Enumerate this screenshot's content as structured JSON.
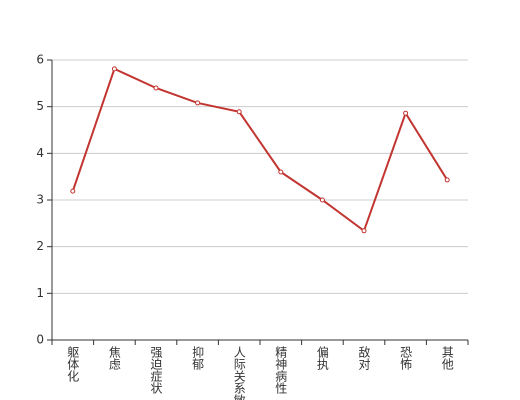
{
  "chart_data": {
    "type": "line",
    "categories": [
      "躯体化",
      "焦虑",
      "强迫症状",
      "抑郁",
      "人际关系敏感",
      "精神病性",
      "偏执",
      "敌对",
      "恐怖",
      "其他"
    ],
    "series": [
      {
        "color": "#c23531",
        "values": [
          3.19,
          5.81,
          5.4,
          5.08,
          4.89,
          3.6,
          3.0,
          2.34,
          4.86,
          3.43
        ]
      }
    ],
    "ylim": [
      0,
      6
    ],
    "yticks": [
      0,
      1,
      2,
      3,
      4,
      5,
      6
    ],
    "grid": true
  }
}
